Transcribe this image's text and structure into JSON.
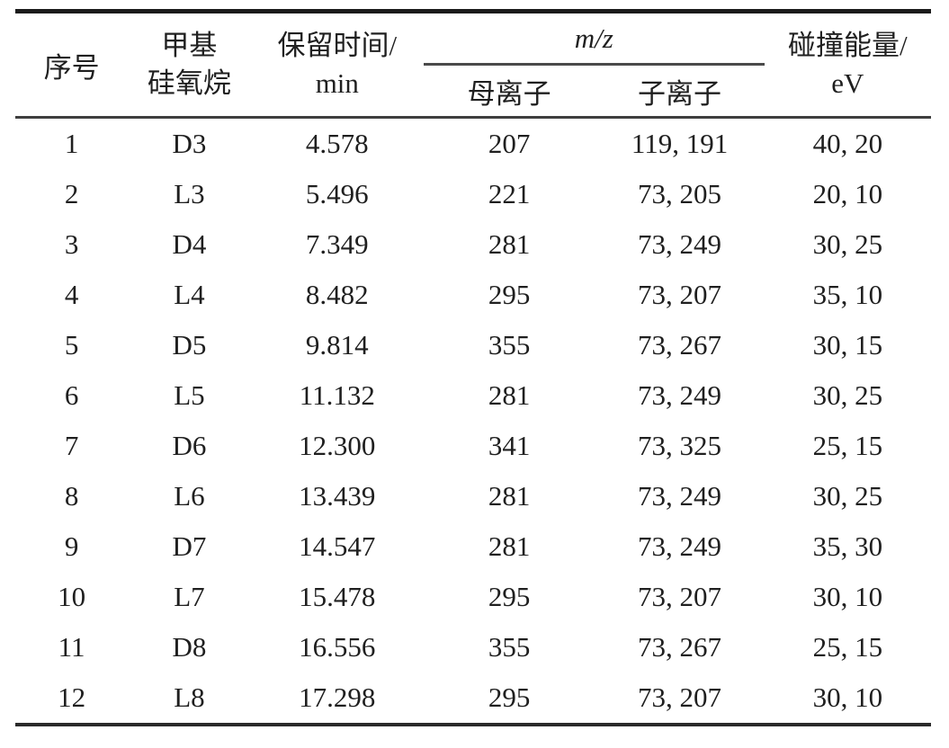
{
  "page": {
    "background_color": "#ffffff",
    "text_color": "#1f1f1f",
    "rule_colors": {
      "top_rule": "#1b1b1b",
      "header_separator": "#3f3f3f",
      "mz_underline": "#4a4a4a",
      "bottom_rule": "#2a2a2a"
    }
  },
  "table": {
    "header": {
      "no": "序号",
      "siloxane_line1": "甲基",
      "siloxane_line2": "硅氧烷",
      "retention_line1": "保留时间/",
      "retention_line2": "min",
      "mz": "m/z",
      "parent": "母离子",
      "daughter": "子离子",
      "energy_line1": "碰撞能量/",
      "energy_line2": "eV"
    },
    "rows": [
      {
        "no": "1",
        "siloxane": "D3",
        "retention": "4.578",
        "parent": "207",
        "daughter": "119, 191",
        "energy": "40, 20"
      },
      {
        "no": "2",
        "siloxane": "L3",
        "retention": "5.496",
        "parent": "221",
        "daughter": "73, 205",
        "energy": "20, 10"
      },
      {
        "no": "3",
        "siloxane": "D4",
        "retention": "7.349",
        "parent": "281",
        "daughter": "73, 249",
        "energy": "30, 25"
      },
      {
        "no": "4",
        "siloxane": "L4",
        "retention": "8.482",
        "parent": "295",
        "daughter": "73, 207",
        "energy": "35, 10"
      },
      {
        "no": "5",
        "siloxane": "D5",
        "retention": "9.814",
        "parent": "355",
        "daughter": "73, 267",
        "energy": "30, 15"
      },
      {
        "no": "6",
        "siloxane": "L5",
        "retention": "11.132",
        "parent": "281",
        "daughter": "73, 249",
        "energy": "30, 25"
      },
      {
        "no": "7",
        "siloxane": "D6",
        "retention": "12.300",
        "parent": "341",
        "daughter": "73, 325",
        "energy": "25, 15"
      },
      {
        "no": "8",
        "siloxane": "L6",
        "retention": "13.439",
        "parent": "281",
        "daughter": "73, 249",
        "energy": "30, 25"
      },
      {
        "no": "9",
        "siloxane": "D7",
        "retention": "14.547",
        "parent": "281",
        "daughter": "73, 249",
        "energy": "35, 30"
      },
      {
        "no": "10",
        "siloxane": "L7",
        "retention": "15.478",
        "parent": "295",
        "daughter": "73, 207",
        "energy": "30, 10"
      },
      {
        "no": "11",
        "siloxane": "D8",
        "retention": "16.556",
        "parent": "355",
        "daughter": "73, 267",
        "energy": "25, 15"
      },
      {
        "no": "12",
        "siloxane": "L8",
        "retention": "17.298",
        "parent": "295",
        "daughter": "73, 207",
        "energy": "30, 10"
      }
    ]
  }
}
